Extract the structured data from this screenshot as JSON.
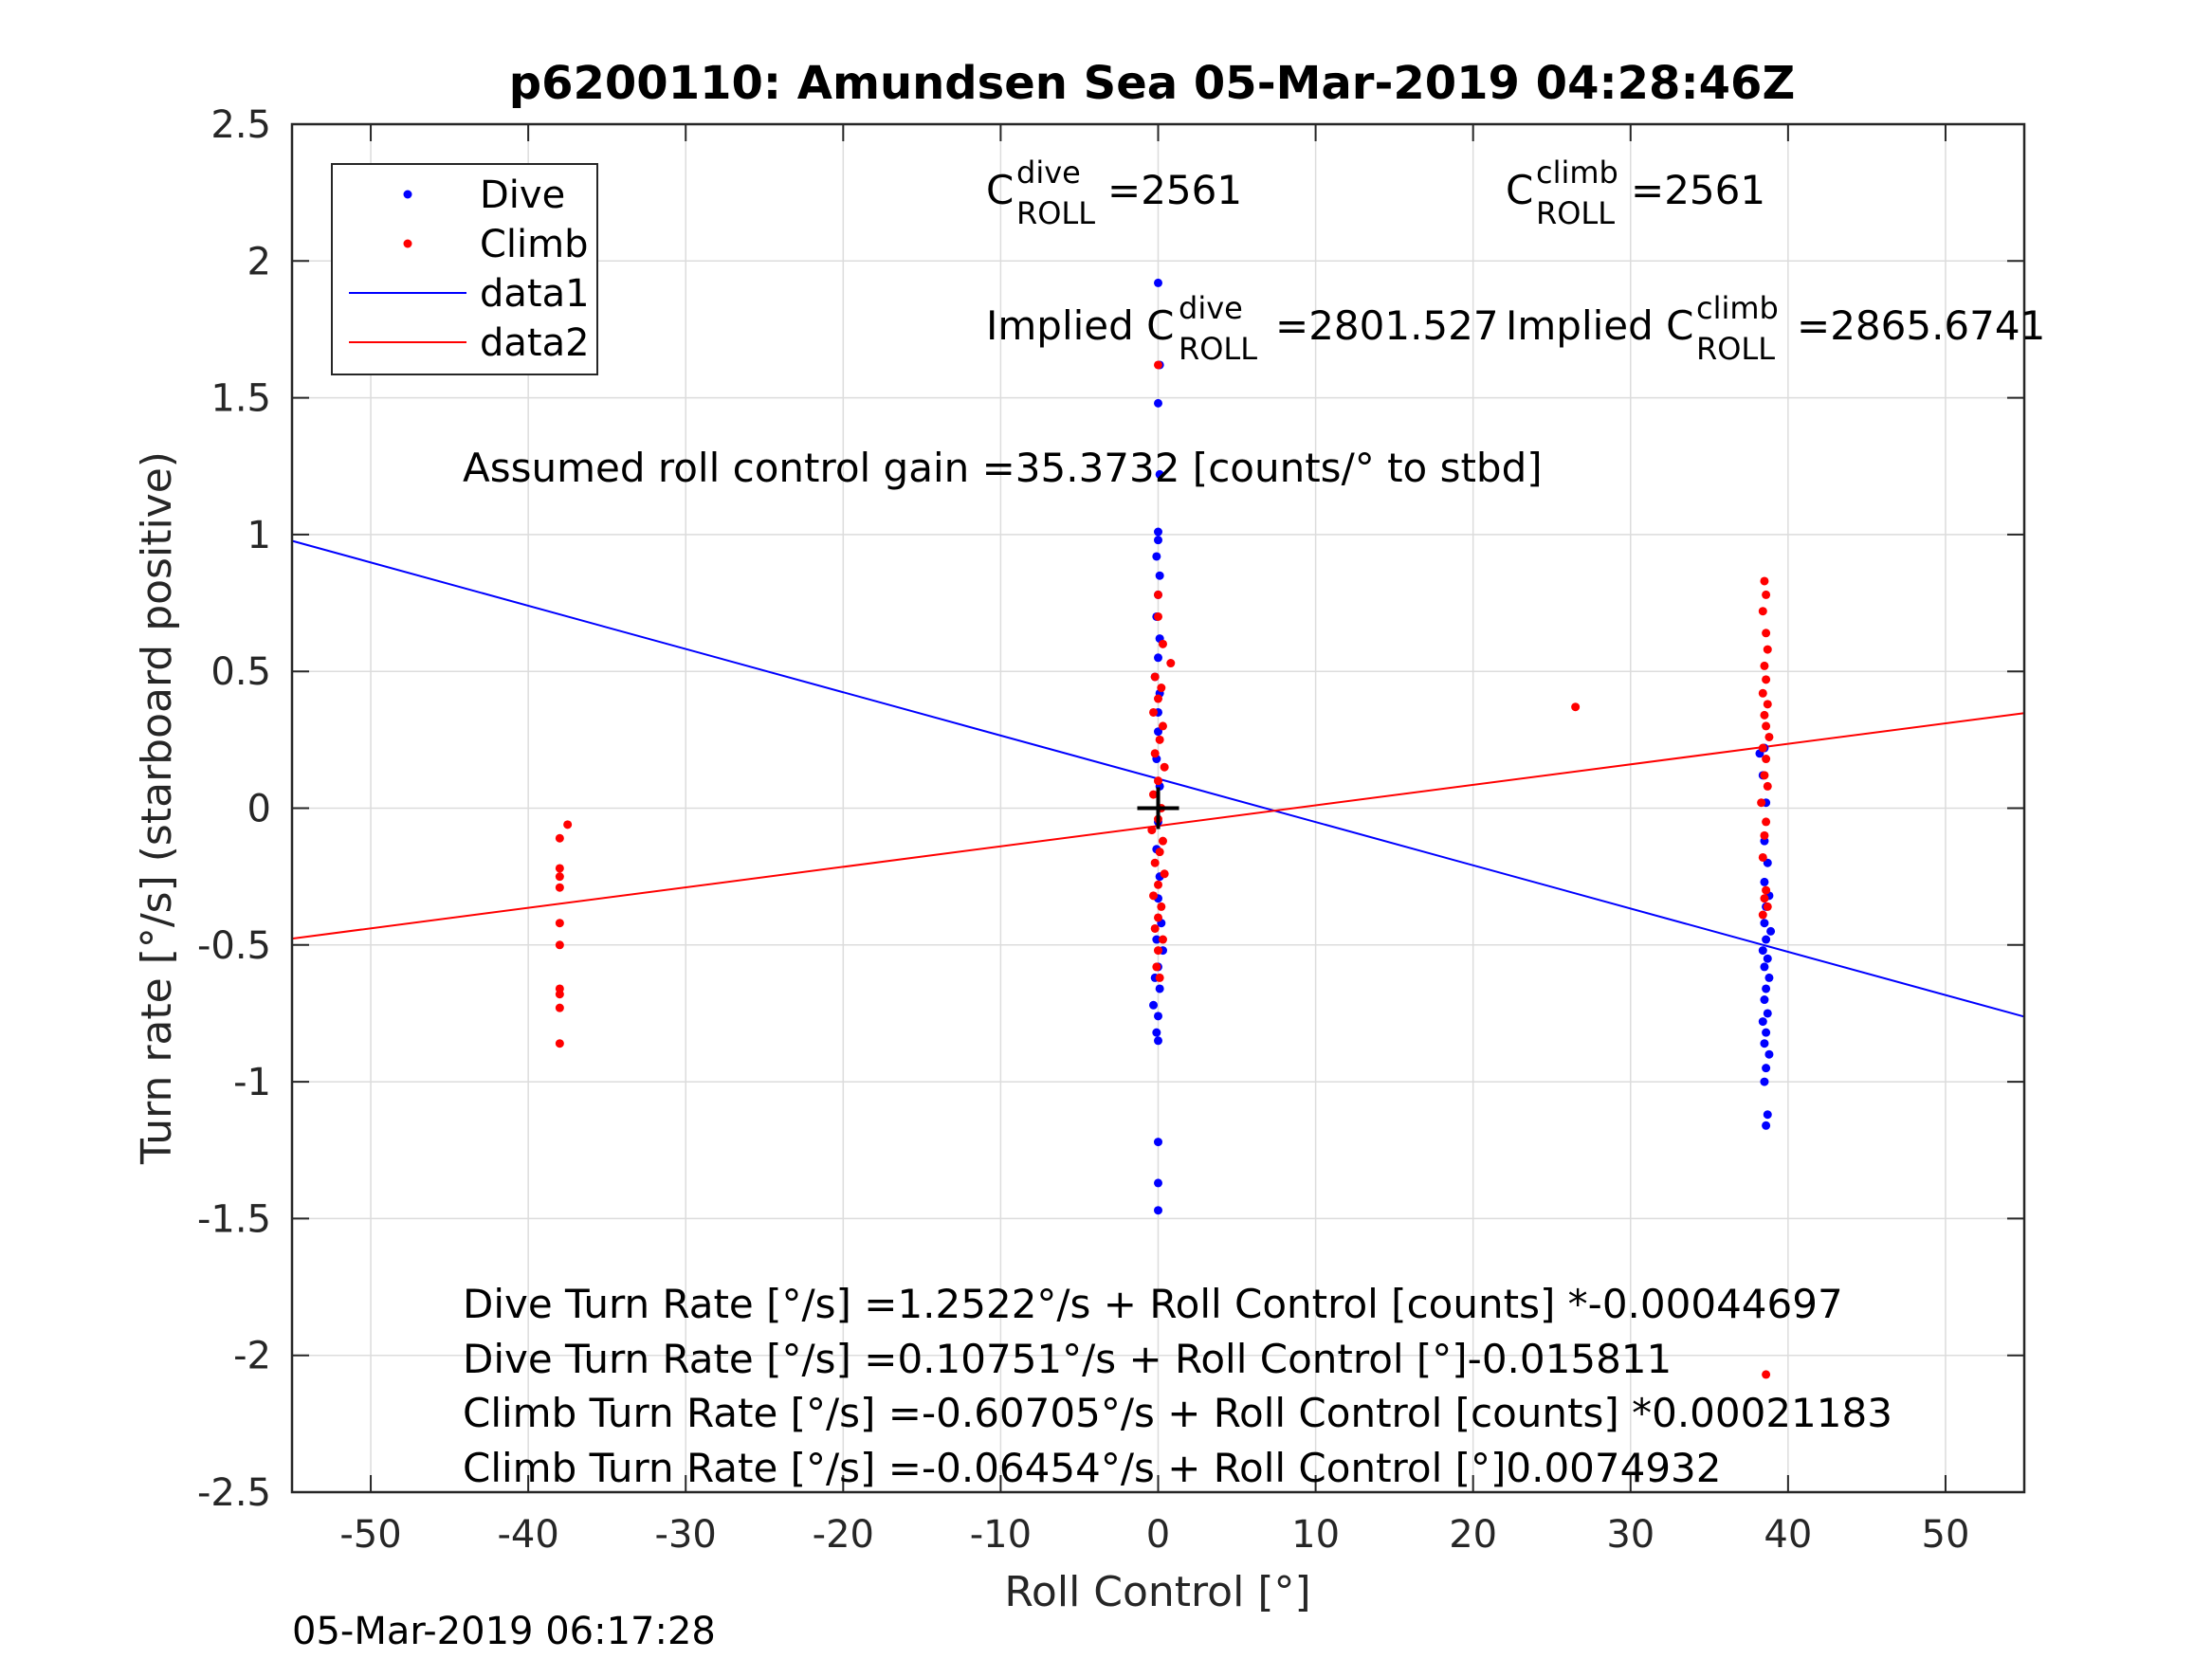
{
  "chart_data": {
    "type": "scatter",
    "title": "p6200110: Amundsen Sea 05-Mar-2019 04:28:46Z",
    "xlabel": "Roll Control [°]",
    "ylabel": "Turn rate [°/s] (starboard positive)",
    "xlim": [
      -55,
      55
    ],
    "ylim": [
      -2.5,
      2.5
    ],
    "xticks": [
      -50,
      -40,
      -30,
      -20,
      -10,
      0,
      10,
      20,
      30,
      40,
      50
    ],
    "xtick_labels": [
      "-50",
      "-40",
      "-30",
      "-20",
      "-10",
      "0",
      "10",
      "20",
      "30",
      "40",
      "50"
    ],
    "yticks": [
      -2.5,
      -2,
      -1.5,
      -1,
      -0.5,
      0,
      0.5,
      1,
      1.5,
      2,
      2.5
    ],
    "ytick_labels": [
      "-2.5",
      "-2",
      "-1.5",
      "-1",
      "-0.5",
      "0",
      "0.5",
      "1",
      "1.5",
      "2",
      "2.5"
    ],
    "grid": true,
    "legend_position": "top-left",
    "legend": [
      {
        "label": "Dive",
        "kind": "dot",
        "color": "#0000ff"
      },
      {
        "label": "Climb",
        "kind": "dot",
        "color": "#ff0000"
      },
      {
        "label": "data1",
        "kind": "line",
        "color": "#0000ff"
      },
      {
        "label": "data2",
        "kind": "line",
        "color": "#ff0000"
      }
    ],
    "series": [
      {
        "name": "Dive",
        "kind": "scatter",
        "color": "#0000ff",
        "points": [
          [
            0.0,
            1.92
          ],
          [
            0.1,
            1.62
          ],
          [
            0.0,
            1.48
          ],
          [
            0.1,
            1.22
          ],
          [
            0.0,
            1.01
          ],
          [
            0.0,
            0.98
          ],
          [
            -0.1,
            0.92
          ],
          [
            0.1,
            0.85
          ],
          [
            0.0,
            0.78
          ],
          [
            -0.1,
            0.7
          ],
          [
            0.1,
            0.62
          ],
          [
            0.0,
            0.55
          ],
          [
            -0.2,
            0.48
          ],
          [
            0.1,
            0.42
          ],
          [
            0.0,
            0.35
          ],
          [
            0.0,
            0.28
          ],
          [
            -0.1,
            0.18
          ],
          [
            0.1,
            0.08
          ],
          [
            0.0,
            -0.05
          ],
          [
            -0.1,
            -0.15
          ],
          [
            0.1,
            -0.25
          ],
          [
            0.0,
            -0.33
          ],
          [
            0.2,
            -0.42
          ],
          [
            -0.1,
            -0.48
          ],
          [
            0.3,
            -0.52
          ],
          [
            0.0,
            -0.58
          ],
          [
            -0.2,
            -0.62
          ],
          [
            0.1,
            -0.66
          ],
          [
            -0.3,
            -0.72
          ],
          [
            0.0,
            -0.76
          ],
          [
            -0.1,
            -0.82
          ],
          [
            0.0,
            -0.85
          ],
          [
            0.0,
            -1.22
          ],
          [
            0.0,
            -1.37
          ],
          [
            0.0,
            -1.47
          ],
          [
            38.5,
            0.22
          ],
          [
            38.2,
            0.2
          ],
          [
            38.4,
            0.12
          ],
          [
            38.6,
            0.02
          ],
          [
            38.5,
            -0.12
          ],
          [
            38.7,
            -0.2
          ],
          [
            38.5,
            -0.27
          ],
          [
            38.8,
            -0.32
          ],
          [
            38.6,
            -0.36
          ],
          [
            38.5,
            -0.42
          ],
          [
            38.9,
            -0.45
          ],
          [
            38.6,
            -0.48
          ],
          [
            38.4,
            -0.52
          ],
          [
            38.7,
            -0.55
          ],
          [
            38.5,
            -0.58
          ],
          [
            38.8,
            -0.62
          ],
          [
            38.6,
            -0.66
          ],
          [
            38.5,
            -0.7
          ],
          [
            38.7,
            -0.75
          ],
          [
            38.4,
            -0.78
          ],
          [
            38.6,
            -0.82
          ],
          [
            38.5,
            -0.86
          ],
          [
            38.8,
            -0.9
          ],
          [
            38.6,
            -0.95
          ],
          [
            38.5,
            -1.0
          ],
          [
            38.7,
            -1.12
          ],
          [
            38.6,
            -1.16
          ]
        ]
      },
      {
        "name": "Climb",
        "kind": "scatter",
        "color": "#ff0000",
        "points": [
          [
            -38.0,
            -0.86
          ],
          [
            -38.0,
            -0.73
          ],
          [
            -38.0,
            -0.68
          ],
          [
            -38.0,
            -0.66
          ],
          [
            -38.0,
            -0.5
          ],
          [
            -38.0,
            -0.42
          ],
          [
            -38.0,
            -0.29
          ],
          [
            -38.0,
            -0.25
          ],
          [
            -38.0,
            -0.22
          ],
          [
            -38.0,
            -0.11
          ],
          [
            -37.5,
            -0.06
          ],
          [
            0.0,
            1.62
          ],
          [
            0.0,
            0.78
          ],
          [
            0.0,
            0.7
          ],
          [
            0.3,
            0.6
          ],
          [
            0.8,
            0.53
          ],
          [
            -0.2,
            0.48
          ],
          [
            0.2,
            0.44
          ],
          [
            0.0,
            0.4
          ],
          [
            -0.3,
            0.35
          ],
          [
            0.3,
            0.3
          ],
          [
            0.1,
            0.25
          ],
          [
            -0.2,
            0.2
          ],
          [
            0.4,
            0.15
          ],
          [
            0.0,
            0.1
          ],
          [
            -0.3,
            0.05
          ],
          [
            0.2,
            0.0
          ],
          [
            0.0,
            -0.04
          ],
          [
            -0.4,
            -0.08
          ],
          [
            0.3,
            -0.12
          ],
          [
            0.1,
            -0.16
          ],
          [
            -0.2,
            -0.2
          ],
          [
            0.4,
            -0.24
          ],
          [
            0.0,
            -0.28
          ],
          [
            -0.3,
            -0.32
          ],
          [
            0.2,
            -0.36
          ],
          [
            0.0,
            -0.4
          ],
          [
            -0.2,
            -0.44
          ],
          [
            0.3,
            -0.48
          ],
          [
            0.0,
            -0.52
          ],
          [
            -0.1,
            -0.58
          ],
          [
            0.1,
            -0.62
          ],
          [
            26.5,
            0.37
          ],
          [
            38.5,
            0.83
          ],
          [
            38.6,
            0.78
          ],
          [
            38.4,
            0.72
          ],
          [
            38.6,
            0.64
          ],
          [
            38.7,
            0.58
          ],
          [
            38.5,
            0.52
          ],
          [
            38.6,
            0.47
          ],
          [
            38.4,
            0.42
          ],
          [
            38.7,
            0.38
          ],
          [
            38.5,
            0.34
          ],
          [
            38.6,
            0.3
          ],
          [
            38.8,
            0.26
          ],
          [
            38.4,
            0.22
          ],
          [
            38.6,
            0.18
          ],
          [
            38.5,
            0.12
          ],
          [
            38.7,
            0.08
          ],
          [
            38.3,
            0.02
          ],
          [
            38.6,
            -0.05
          ],
          [
            38.5,
            -0.1
          ],
          [
            38.4,
            -0.18
          ],
          [
            38.6,
            -0.3
          ],
          [
            38.5,
            -0.33
          ],
          [
            38.7,
            -0.36
          ],
          [
            38.4,
            -0.39
          ],
          [
            38.6,
            -2.07
          ]
        ]
      },
      {
        "name": "data1",
        "kind": "line",
        "color": "#0000ff",
        "x": [
          -55,
          55
        ],
        "y": [
          0.9771,
          -0.7622
        ]
      },
      {
        "name": "data2",
        "kind": "line",
        "color": "#ff0000",
        "x": [
          -55,
          55
        ],
        "y": [
          -0.4767,
          0.3475
        ]
      }
    ],
    "marker": {
      "name": "origin-cross",
      "x": 0,
      "y": 0,
      "color": "#000000"
    },
    "annotations": {
      "c_dive": {
        "base": "C",
        "sup": "dive",
        "sub": "ROLL",
        "value": "=2561"
      },
      "c_climb": {
        "base": "C",
        "sup": "climb",
        "sub": "ROLL",
        "value": "=2561"
      },
      "implied_dive": {
        "prefix": "Implied C",
        "sup": "dive",
        "sub": "ROLL",
        "value": "=2801.527"
      },
      "implied_climb": {
        "prefix": "Implied C",
        "sup": "climb",
        "sub": "ROLL",
        "value": "=2865.6741"
      },
      "gain": "Assumed roll control gain =35.3732 [counts/° to stbd]",
      "eq1": "Dive Turn Rate [°/s] =1.2522°/s + Roll Control [counts] *-0.00044697",
      "eq2": "Dive Turn Rate [°/s] =0.10751°/s + Roll Control [°]-0.015811",
      "eq3": "Climb Turn Rate [°/s] =-0.60705°/s + Roll Control [counts] *0.00021183",
      "eq4": "Climb Turn Rate [°/s] =-0.06454°/s + Roll Control [°]0.0074932"
    },
    "timestamp": "05-Mar-2019 06:17:28"
  }
}
